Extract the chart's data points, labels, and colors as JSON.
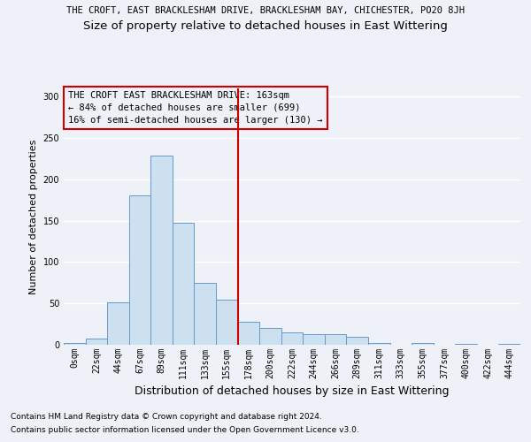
{
  "title": "THE CROFT, EAST BRACKLESHAM DRIVE, BRACKLESHAM BAY, CHICHESTER, PO20 8JH",
  "subtitle": "Size of property relative to detached houses in East Wittering",
  "xlabel": "Distribution of detached houses by size in East Wittering",
  "ylabel": "Number of detached properties",
  "footnote1": "Contains HM Land Registry data © Crown copyright and database right 2024.",
  "footnote2": "Contains public sector information licensed under the Open Government Licence v3.0.",
  "annotation_line1": "THE CROFT EAST BRACKLESHAM DRIVE: 163sqm",
  "annotation_line2": "← 84% of detached houses are smaller (699)",
  "annotation_line3": "16% of semi-detached houses are larger (130) →",
  "bar_color": "#cce0f0",
  "bar_edge_color": "#6699cc",
  "vline_color": "#cc0000",
  "vline_x": 7.5,
  "categories": [
    "0sqm",
    "22sqm",
    "44sqm",
    "67sqm",
    "89sqm",
    "111sqm",
    "133sqm",
    "155sqm",
    "178sqm",
    "200sqm",
    "222sqm",
    "244sqm",
    "266sqm",
    "289sqm",
    "311sqm",
    "333sqm",
    "355sqm",
    "377sqm",
    "400sqm",
    "422sqm",
    "444sqm"
  ],
  "values": [
    2,
    8,
    51,
    181,
    229,
    147,
    75,
    55,
    28,
    20,
    15,
    13,
    13,
    10,
    2,
    0,
    2,
    0,
    1,
    0,
    1
  ],
  "ylim": [
    0,
    310
  ],
  "yticks": [
    0,
    50,
    100,
    150,
    200,
    250,
    300
  ],
  "background_color": "#eef2f8",
  "grid_color": "#ffffff",
  "title_fontsize": 7.5,
  "subtitle_fontsize": 9.5,
  "xlabel_fontsize": 9,
  "ylabel_fontsize": 8,
  "tick_fontsize": 7,
  "annotation_fontsize": 7.5,
  "footnote_fontsize": 6.5
}
